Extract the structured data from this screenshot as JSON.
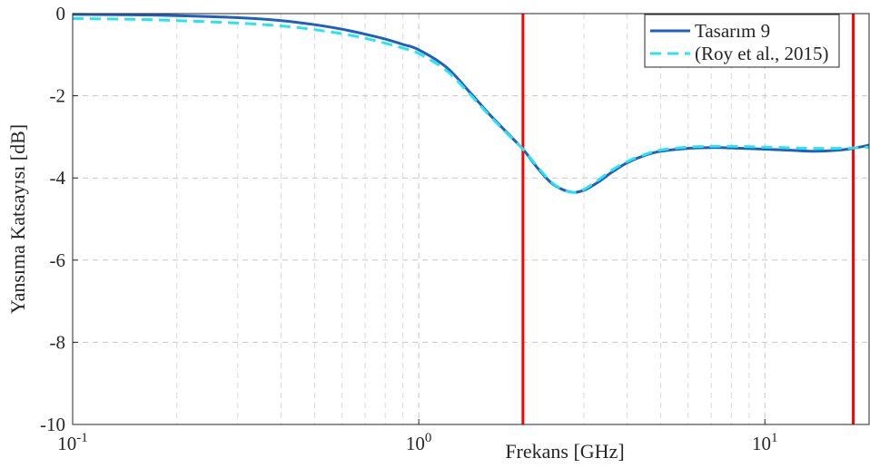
{
  "chart_data": {
    "type": "line",
    "title": "",
    "xlabel": "Frekans [GHz]",
    "ylabel": "Yansıma Katsayısı [dB]",
    "xscale": "log",
    "xlim": [
      0.1,
      20
    ],
    "ylim": [
      -10,
      0
    ],
    "grid": true,
    "x_ticks": [
      {
        "base": "10",
        "exp": "-1",
        "value": 0.1
      },
      {
        "base": "10",
        "exp": "0",
        "value": 1
      },
      {
        "base": "10",
        "exp": "1",
        "value": 10
      }
    ],
    "y_ticks": [
      {
        "label": "0",
        "value": 0
      },
      {
        "label": "-2",
        "value": -2
      },
      {
        "label": "-4",
        "value": -4
      },
      {
        "label": "-6",
        "value": -6
      },
      {
        "label": "-8",
        "value": -8
      },
      {
        "label": "-10",
        "value": -10
      }
    ],
    "vertical_lines": [
      {
        "x": 2,
        "color": "#ff0000"
      },
      {
        "x": 18,
        "color": "#ff0000"
      }
    ],
    "legend_position": "top-right",
    "series": [
      {
        "name": "Tasarım 9",
        "color": "#1f5fbf",
        "style": "solid",
        "x": [
          0.1,
          0.15,
          0.2,
          0.3,
          0.4,
          0.5,
          0.6,
          0.7,
          0.8,
          0.9,
          1.0,
          1.2,
          1.4,
          1.6,
          1.8,
          2.0,
          2.2,
          2.4,
          2.6,
          2.8,
          3.0,
          3.3,
          3.6,
          4.0,
          4.5,
          5.0,
          6.0,
          7.0,
          8.0,
          10.0,
          12.0,
          14.0,
          16.0,
          18.0,
          20.0
        ],
        "y": [
          -0.02,
          -0.03,
          -0.05,
          -0.1,
          -0.17,
          -0.27,
          -0.38,
          -0.5,
          -0.62,
          -0.75,
          -0.88,
          -1.3,
          -1.9,
          -2.45,
          -2.9,
          -3.3,
          -3.75,
          -4.1,
          -4.28,
          -4.35,
          -4.3,
          -4.1,
          -3.87,
          -3.63,
          -3.45,
          -3.35,
          -3.28,
          -3.26,
          -3.27,
          -3.3,
          -3.33,
          -3.35,
          -3.33,
          -3.28,
          -3.2
        ]
      },
      {
        "name": "(Roy et al., 2015)",
        "color": "#28e4f0",
        "style": "dashed",
        "x": [
          0.1,
          0.15,
          0.2,
          0.3,
          0.4,
          0.5,
          0.6,
          0.7,
          0.8,
          0.9,
          1.0,
          1.2,
          1.4,
          1.6,
          1.8,
          2.0,
          2.2,
          2.4,
          2.6,
          2.8,
          3.0,
          3.3,
          3.6,
          4.0,
          4.5,
          5.0,
          6.0,
          7.0,
          8.0,
          10.0,
          12.0,
          14.0,
          16.0,
          18.0,
          20.0
        ],
        "y": [
          -0.12,
          -0.14,
          -0.17,
          -0.23,
          -0.3,
          -0.39,
          -0.49,
          -0.6,
          -0.72,
          -0.84,
          -0.97,
          -1.38,
          -1.95,
          -2.48,
          -2.92,
          -3.3,
          -3.72,
          -4.08,
          -4.28,
          -4.35,
          -4.28,
          -4.05,
          -3.82,
          -3.6,
          -3.43,
          -3.32,
          -3.25,
          -3.23,
          -3.23,
          -3.25,
          -3.27,
          -3.28,
          -3.28,
          -3.27,
          -3.25
        ]
      }
    ]
  }
}
